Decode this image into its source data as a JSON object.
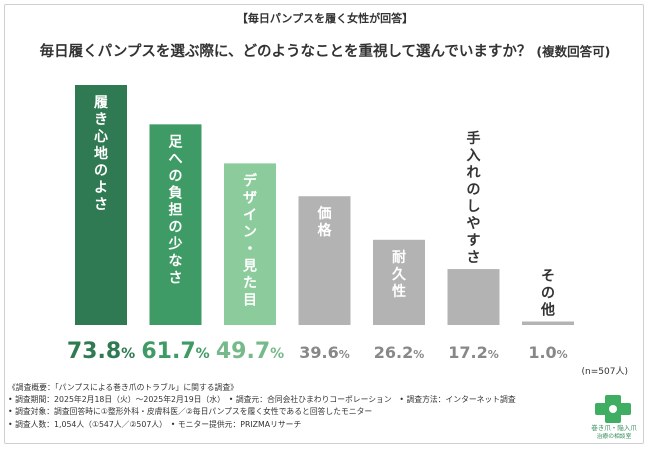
{
  "header": {
    "survey_tag": "【毎日パンプスを履く女性が回答】",
    "question": "毎日履くパンプスを選ぶ際に、どのようなことを重視して選んでいますか？",
    "question_note": "(複数回答可)"
  },
  "chart_data": {
    "type": "bar",
    "categories": [
      "履き心地のよさ",
      "足への負担の少なさ",
      "デザイン・見た目",
      "価格",
      "耐久性",
      "手入れのしやすさ",
      "その他"
    ],
    "values": [
      73.8,
      61.7,
      49.7,
      39.6,
      26.2,
      17.2,
      1.0
    ],
    "value_labels": [
      "73.8",
      "61.7",
      "49.7",
      "39.6",
      "26.2",
      "17.2",
      "1.0"
    ],
    "unit": "%",
    "sample_note": "(n=507人)",
    "ylim": [
      0,
      80
    ],
    "grid": false,
    "colors": [
      "#2f7a52",
      "#3f9b65",
      "#8ccc9c",
      "#b3b3b3",
      "#b3b3b3",
      "#b3b3b3",
      "#b3b3b3"
    ],
    "value_colors": [
      "#2f7a52",
      "#3f9b65",
      "#76b98a",
      "#888888",
      "#888888",
      "#888888",
      "#888888"
    ]
  },
  "footer": {
    "lines": [
      "《調査概要：「パンプスによる巻き爪のトラブル」に関する調査》",
      "• 調査期間：2025年2月18日（火）～2025年2月19日（水）　• 調査元：合同会社ひまわりコーポレーション　• 調査方法：インターネット調査",
      "• 調査対象：調査回答時に①整形外科・皮膚科医／②毎日パンプスを履く女性であると回答したモニター",
      "• 調査人数：1,054人（①547人／②507人）　• モニター提供元：PRIZMAリサーチ"
    ]
  },
  "logo": {
    "name": "巻き爪・陥入爪",
    "sub": "治療の相談室",
    "color": "#3fae62"
  }
}
